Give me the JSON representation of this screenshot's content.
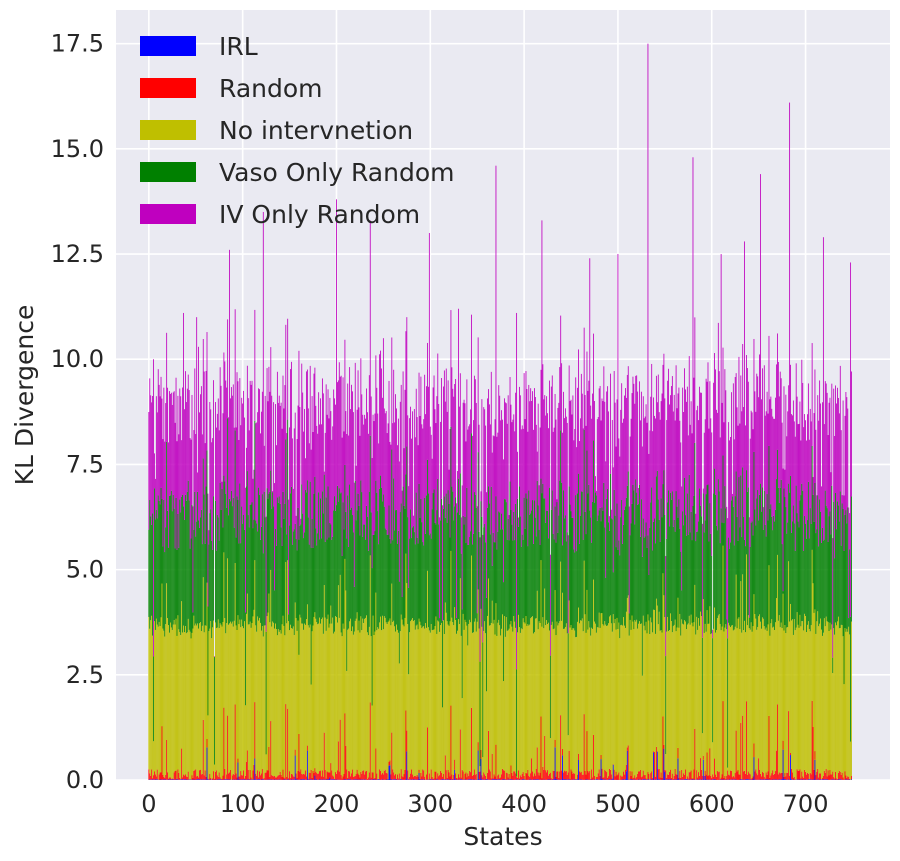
{
  "chart_data": {
    "type": "bar",
    "stacked": true,
    "title": "",
    "xlabel": "States",
    "ylabel": "KL Divergence",
    "xlim": [
      -35,
      790
    ],
    "ylim": [
      0,
      18.3
    ],
    "x_ticks": [
      0,
      100,
      200,
      300,
      400,
      500,
      600,
      700
    ],
    "y_ticks": [
      0.0,
      2.5,
      5.0,
      7.5,
      10.0,
      12.5,
      15.0,
      17.5
    ],
    "y_tick_labels": [
      "0.0",
      "2.5",
      "5.0",
      "7.5",
      "10.0",
      "12.5",
      "15.0",
      "17.5"
    ],
    "n_states": 750,
    "grid": true,
    "legend_position": "upper-left",
    "series": [
      {
        "name": "IRL",
        "color": "#0000ff",
        "typical": 0.02
      },
      {
        "name": "Random",
        "color": "#ff0000",
        "typical": 0.1
      },
      {
        "name": "No intervnetion",
        "color": "#bfbf00",
        "typical": 3.5
      },
      {
        "name": "Vaso Only Random",
        "color": "#008000",
        "typical": 2.7
      },
      {
        "name": "IV Only Random",
        "color": "#bf00bf",
        "typical": 2.6
      }
    ],
    "notable_peaks": [
      {
        "x": 5,
        "total": 10.0
      },
      {
        "x": 37,
        "total": 11.1
      },
      {
        "x": 51,
        "total": 11.0
      },
      {
        "x": 86,
        "total": 12.6
      },
      {
        "x": 122,
        "total": 13.5
      },
      {
        "x": 160,
        "total": 10.2
      },
      {
        "x": 200,
        "total": 13.8
      },
      {
        "x": 236,
        "total": 13.3
      },
      {
        "x": 250,
        "total": 10.5
      },
      {
        "x": 275,
        "total": 11.0
      },
      {
        "x": 299,
        "total": 13.0
      },
      {
        "x": 330,
        "total": 11.2
      },
      {
        "x": 370,
        "total": 14.6
      },
      {
        "x": 392,
        "total": 11.1
      },
      {
        "x": 419,
        "total": 13.3
      },
      {
        "x": 470,
        "total": 12.4
      },
      {
        "x": 500,
        "total": 12.5
      },
      {
        "x": 532,
        "total": 17.5
      },
      {
        "x": 580,
        "total": 14.8
      },
      {
        "x": 610,
        "total": 12.5
      },
      {
        "x": 635,
        "total": 12.8
      },
      {
        "x": 652,
        "total": 14.4
      },
      {
        "x": 683,
        "total": 16.1
      },
      {
        "x": 719,
        "total": 12.9
      },
      {
        "x": 748,
        "total": 12.3
      }
    ]
  }
}
